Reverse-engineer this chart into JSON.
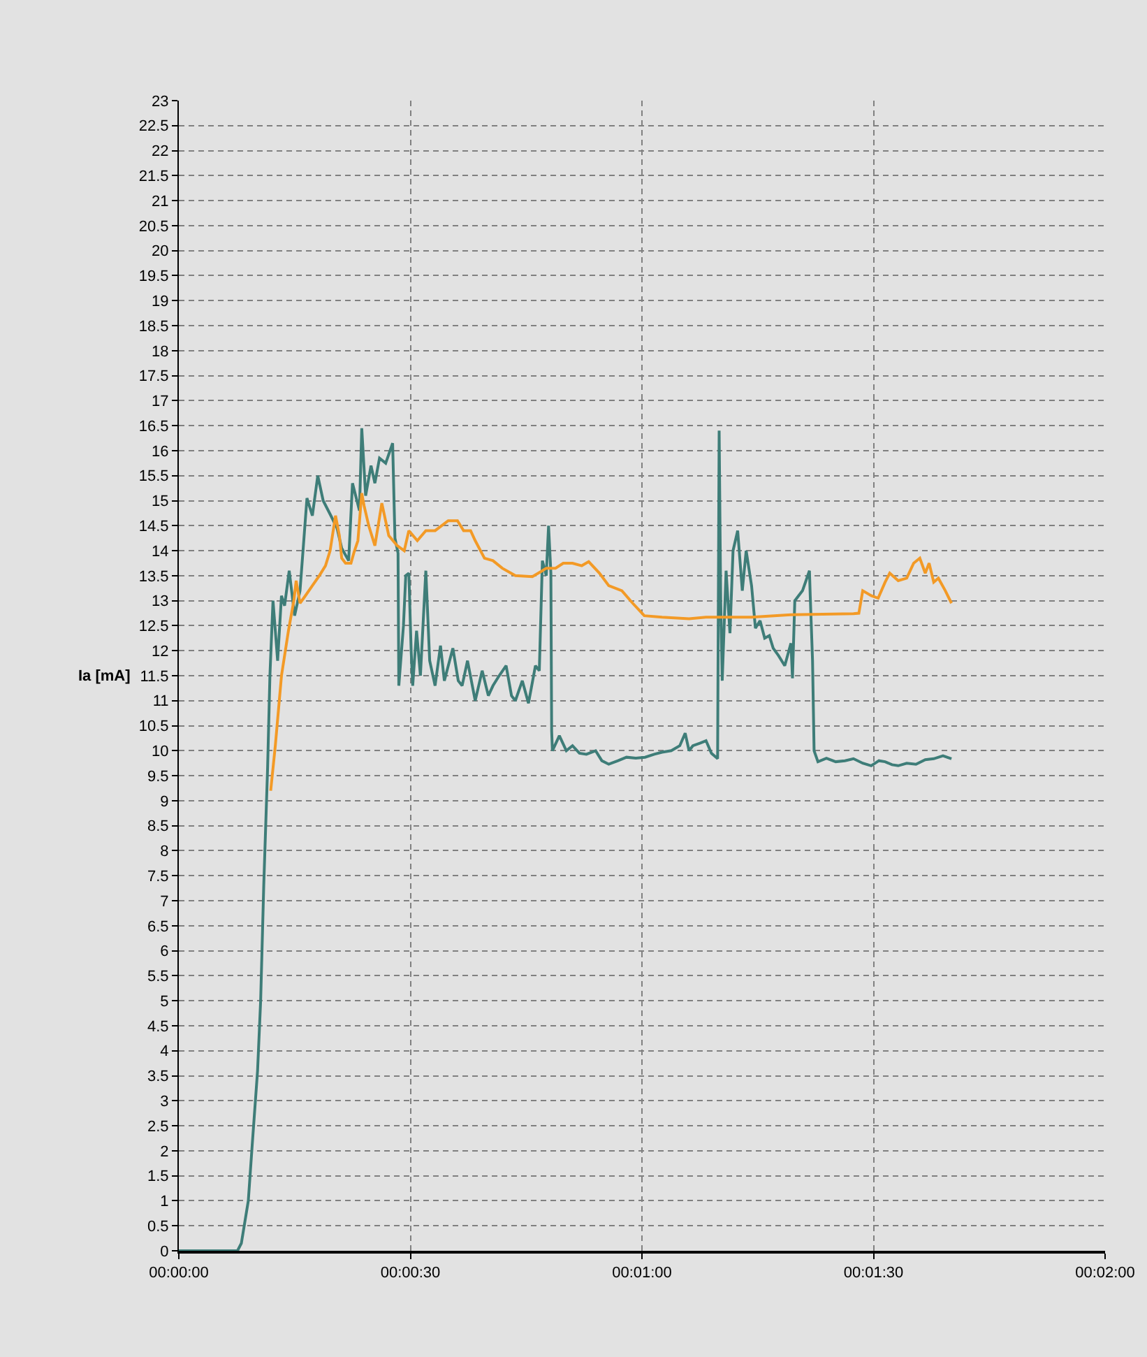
{
  "chart_data": {
    "type": "line",
    "ylabel": "Ia [mA]",
    "xlim": [
      0,
      120
    ],
    "xticks": [
      {
        "value": 0,
        "label": "00:00:00"
      },
      {
        "value": 30,
        "label": "00:00:30"
      },
      {
        "value": 60,
        "label": "00:01:00"
      },
      {
        "value": 90,
        "label": "00:01:30"
      },
      {
        "value": 120,
        "label": "00:02:00"
      }
    ],
    "ylim": [
      0,
      23
    ],
    "yticks": [
      0,
      0.5,
      1,
      1.5,
      2,
      2.5,
      3,
      3.5,
      4,
      4.5,
      5,
      5.5,
      6,
      6.5,
      7,
      7.5,
      8,
      8.5,
      9,
      9.5,
      10,
      10.5,
      11,
      11.5,
      12,
      12.5,
      13,
      13.5,
      14,
      14.5,
      15,
      15.5,
      16,
      16.5,
      17,
      17.5,
      18,
      18.5,
      19,
      19.5,
      20,
      20.5,
      21,
      21.5,
      22,
      22.5,
      23
    ],
    "grid": true,
    "line_style": "solid",
    "series": [
      {
        "color": "#3e7d78",
        "x": [
          0,
          7.6,
          8.1,
          9.0,
          9.5,
          10.2,
          10.6,
          11.0,
          11.5,
          11.8,
          12.2,
          12.8,
          13.3,
          13.7,
          14.3,
          15.0,
          15.7,
          16.6,
          17.3,
          18.0,
          18.7,
          19.7,
          20.5,
          21.1,
          22.0,
          22.5,
          23.4,
          23.7,
          24.2,
          24.9,
          25.4,
          26.0,
          26.8,
          27.7,
          28.0,
          28.4,
          28.5,
          29.1,
          29.4,
          29.8,
          30.1,
          30.3,
          30.8,
          31.3,
          32.0,
          32.5,
          33.2,
          33.9,
          34.4,
          35.5,
          36.2,
          36.7,
          37.4,
          38.4,
          39.3,
          40.1,
          40.7,
          41.5,
          42.4,
          43.1,
          43.6,
          44.5,
          45.3,
          46.2,
          46.7,
          47.1,
          47.6,
          47.9,
          48.2,
          48.3,
          48.4,
          49.3,
          50.2,
          51.0,
          51.9,
          52.8,
          54.0,
          54.8,
          55.7,
          56.9,
          58.0,
          59.2,
          60.4,
          61.6,
          62.6,
          63.8,
          64.9,
          65.6,
          66.1,
          66.6,
          67.5,
          68.3,
          69.0,
          69.6,
          69.8,
          70.0,
          70.2,
          70.4,
          70.9,
          71.4,
          71.8,
          72.4,
          73.0,
          73.5,
          74.2,
          74.7,
          75.3,
          75.9,
          76.5,
          77.0,
          77.7,
          78.5,
          79.3,
          79.5,
          79.8,
          80.8,
          81.7,
          81.8,
          82.1,
          82.3,
          82.8,
          83.9,
          85.1,
          86.3,
          87.4,
          88.6,
          89.7,
          90.7,
          91.5,
          92.4,
          93.2,
          94.3,
          95.5,
          96.7,
          97.8,
          99.0,
          100.1
        ],
        "values": [
          0,
          0,
          0.15,
          1.0,
          2.1,
          3.6,
          5.0,
          7.3,
          9.65,
          11.5,
          13.0,
          11.8,
          13.1,
          12.9,
          13.6,
          12.7,
          13.2,
          15.05,
          14.7,
          15.5,
          15.0,
          14.7,
          14.45,
          14.05,
          13.8,
          15.35,
          14.8,
          16.45,
          15.1,
          15.7,
          15.35,
          15.85,
          15.75,
          16.15,
          14.25,
          13.95,
          11.3,
          12.5,
          13.5,
          13.55,
          12.0,
          11.3,
          12.4,
          11.5,
          13.6,
          11.8,
          11.3,
          12.1,
          11.4,
          12.05,
          11.4,
          11.3,
          11.8,
          11.0,
          11.6,
          11.1,
          11.3,
          11.5,
          11.7,
          11.1,
          11.0,
          11.4,
          10.95,
          11.7,
          11.6,
          13.8,
          13.5,
          14.5,
          13.55,
          10.4,
          10.0,
          10.3,
          10.0,
          10.1,
          9.95,
          9.93,
          10.0,
          9.8,
          9.73,
          9.8,
          9.87,
          9.85,
          9.87,
          9.93,
          9.97,
          10.0,
          10.1,
          10.35,
          10.0,
          10.1,
          10.15,
          10.2,
          9.95,
          9.87,
          9.84,
          16.4,
          13.0,
          11.4,
          13.6,
          12.35,
          14.0,
          14.4,
          13.2,
          14.0,
          13.3,
          12.45,
          12.6,
          12.25,
          12.3,
          12.05,
          11.9,
          11.7,
          12.15,
          11.45,
          13.0,
          13.2,
          13.6,
          13.1,
          11.8,
          10.0,
          9.78,
          9.85,
          9.78,
          9.8,
          9.84,
          9.75,
          9.7,
          9.8,
          9.78,
          9.72,
          9.7,
          9.75,
          9.73,
          9.82,
          9.84,
          9.9,
          9.84
        ]
      },
      {
        "color": "#f39a26",
        "x": [
          11.9,
          12.5,
          13.3,
          14.2,
          14.9,
          15.2,
          15.7,
          16.4,
          17.3,
          18.2,
          19.0,
          19.6,
          20.3,
          20.8,
          21.1,
          21.6,
          22.3,
          22.7,
          23.2,
          23.7,
          24.0,
          24.6,
          25.4,
          26.3,
          27.2,
          28.3,
          29.2,
          29.8,
          30.9,
          32.0,
          33.2,
          34.9,
          36.1,
          36.9,
          37.8,
          38.4,
          39.6,
          40.7,
          41.9,
          43.6,
          45.8,
          47.1,
          47.6,
          48.8,
          49.8,
          51.0,
          52.2,
          53.1,
          54.5,
          55.7,
          57.4,
          58.8,
          59.7,
          60.3,
          62.6,
          66.1,
          68.3,
          74.2,
          79.3,
          83.4,
          87.4,
          88.1,
          88.6,
          89.7,
          90.6,
          91.5,
          92.1,
          93.2,
          94.3,
          95.2,
          96.0,
          96.7,
          97.2,
          97.8,
          98.4,
          99.3,
          100.1
        ],
        "values": [
          9.2,
          10.1,
          11.5,
          12.4,
          13.0,
          13.4,
          12.95,
          13.1,
          13.3,
          13.5,
          13.7,
          14.0,
          14.7,
          14.3,
          13.85,
          13.75,
          13.75,
          13.97,
          14.2,
          15.15,
          14.9,
          14.5,
          14.1,
          14.95,
          14.3,
          14.1,
          14.0,
          14.4,
          14.2,
          14.4,
          14.4,
          14.6,
          14.6,
          14.4,
          14.4,
          14.2,
          13.85,
          13.8,
          13.65,
          13.5,
          13.48,
          13.6,
          13.65,
          13.65,
          13.75,
          13.75,
          13.7,
          13.78,
          13.55,
          13.3,
          13.2,
          12.95,
          12.8,
          12.7,
          12.67,
          12.64,
          12.67,
          12.67,
          12.72,
          12.73,
          12.74,
          12.75,
          13.2,
          13.1,
          13.05,
          13.37,
          13.55,
          13.4,
          13.45,
          13.75,
          13.85,
          13.55,
          13.75,
          13.37,
          13.45,
          13.2,
          12.95
        ]
      }
    ]
  }
}
